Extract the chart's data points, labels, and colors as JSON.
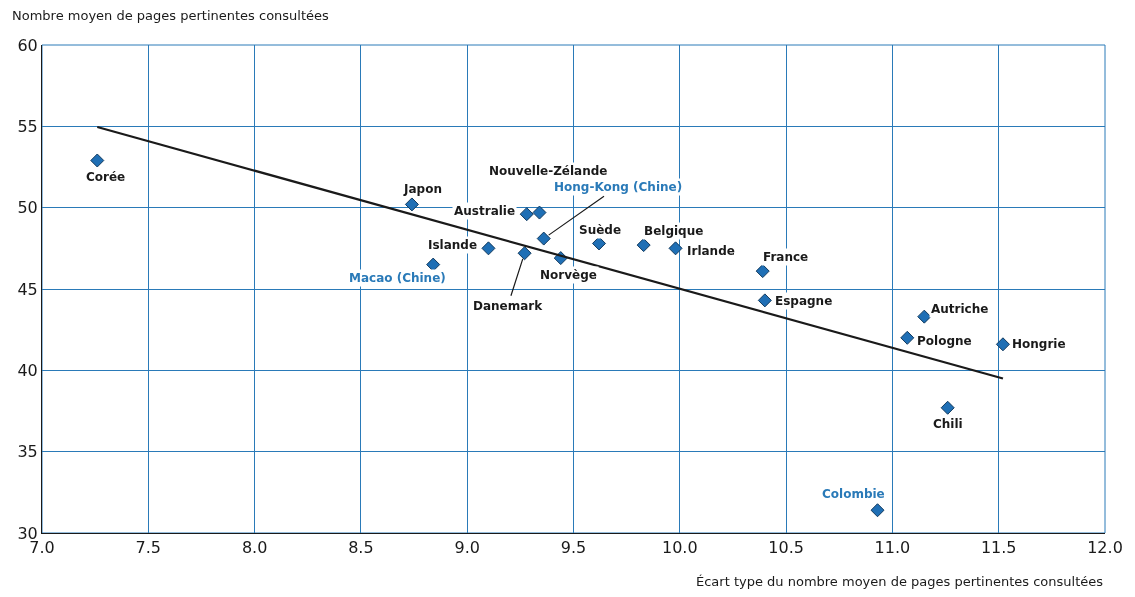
{
  "chart_data": {
    "type": "scatter",
    "xlabel": "Écart type du nombre moyen de pages pertinentes consultées",
    "ylabel": "Nombre moyen de pages pertinentes consultées",
    "xlim": [
      7,
      12
    ],
    "xticks": [
      {
        "value": 7,
        "label": "7.0"
      },
      {
        "value": 7.5,
        "label": "7.5"
      },
      {
        "value": 8,
        "label": "8.0"
      },
      {
        "value": 8.5,
        "label": "8.5"
      },
      {
        "value": 9,
        "label": "9.0"
      },
      {
        "value": 9.5,
        "label": "9.5"
      },
      {
        "value": 10,
        "label": "10.0"
      },
      {
        "value": 10.5,
        "label": "10.5"
      },
      {
        "value": 11,
        "label": "11.0"
      },
      {
        "value": 11.5,
        "label": "11.5"
      },
      {
        "value": 12,
        "label": "12.0"
      }
    ],
    "ylim": [
      30,
      60
    ],
    "yticks": [
      30,
      35,
      40,
      45,
      50,
      55,
      60
    ],
    "grid": true,
    "marker": "diamond",
    "series": [
      {
        "color": "#1f6fb5",
        "x": [
          7.26,
          8.74,
          9.28,
          9.34,
          9.1,
          9.27,
          9.44,
          9.62,
          9.83,
          9.98,
          10.39,
          10.4,
          11.15,
          11.07,
          11.52,
          11.26
        ],
        "values": [
          52.9,
          50.2,
          49.6,
          49.7,
          47.5,
          47.2,
          46.9,
          47.8,
          47.7,
          47.5,
          46.1,
          44.3,
          43.3,
          42,
          41.6,
          37.7
        ]
      },
      {
        "color": "#1f6fb5",
        "x": [
          9.36,
          8.84,
          10.93
        ],
        "values": [
          48.1,
          46.5,
          31.4
        ]
      },
      {
        "type": "line",
        "marker": "none",
        "color": "#1a1a1a",
        "x": [
          7.26,
          11.52
        ],
        "values": [
          54.96,
          39.5
        ]
      }
    ],
    "annotations": [
      {
        "text": "Corée",
        "x": 7.26,
        "y": 52.9
      },
      {
        "text": "Japon",
        "x": 8.74,
        "y": 50.2
      },
      {
        "text": "Australie",
        "x": 9.28,
        "y": 49.6
      },
      {
        "text": "Nouvelle-Zélande",
        "x": 9.34,
        "y": 49.7
      },
      {
        "text": "Islande",
        "x": 9.1,
        "y": 47.5
      },
      {
        "text": "Danemark",
        "x": 9.27,
        "y": 47.2
      },
      {
        "text": "Norvège",
        "x": 9.44,
        "y": 46.9
      },
      {
        "text": "Suède",
        "x": 9.62,
        "y": 47.8
      },
      {
        "text": "Belgique",
        "x": 9.83,
        "y": 47.7
      },
      {
        "text": "Irlande",
        "x": 9.98,
        "y": 47.5
      },
      {
        "text": "France",
        "x": 10.39,
        "y": 46.1
      },
      {
        "text": "Espagne",
        "x": 10.4,
        "y": 44.3
      },
      {
        "text": "Autriche",
        "x": 11.15,
        "y": 43.3
      },
      {
        "text": "Pologne",
        "x": 11.07,
        "y": 42
      },
      {
        "text": "Hongrie",
        "x": 11.52,
        "y": 41.6
      },
      {
        "text": "Chili",
        "x": 11.26,
        "y": 37.7
      },
      {
        "text": "Hong-Kong (Chine)",
        "x": 9.36,
        "y": 48.1
      },
      {
        "text": "Macao (Chine)",
        "x": 8.84,
        "y": 46.5
      },
      {
        "text": "Colombie",
        "x": 10.93,
        "y": 31.4
      }
    ]
  }
}
